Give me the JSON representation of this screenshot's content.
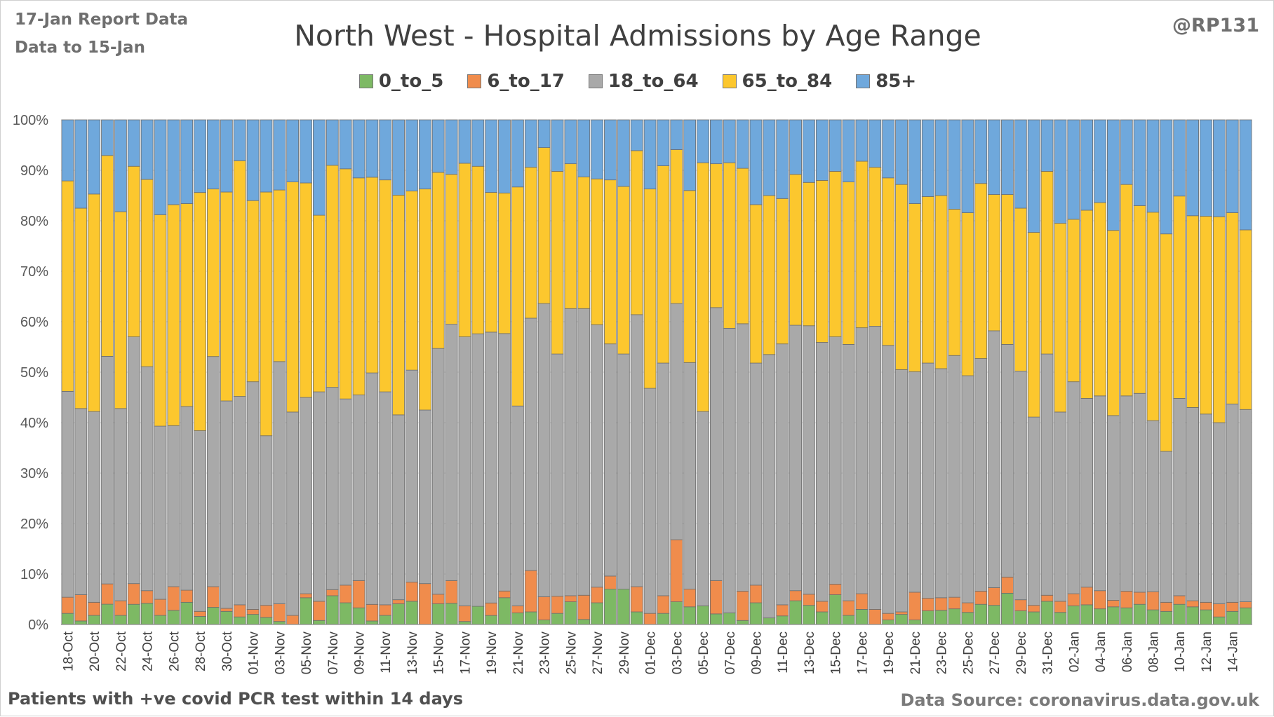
{
  "header": {
    "report_label": "17-Jan Report Data",
    "data_to_label": "Data to 15-Jan",
    "author": "@RP131"
  },
  "footer": {
    "note": "Patients with  +ve covid PCR test within 14 days",
    "source": "Data Source: coronavirus.data.gov.uk"
  },
  "colors": {
    "0_to_5": "#7db964",
    "6_to_17": "#f08c4c",
    "18_to_64": "#a9a9a9",
    "65_to_84": "#fcc72e",
    "85+": "#6fa8dc",
    "grid": "#d9d9d9",
    "bar_border": "#6e6e6e"
  },
  "chart_data": {
    "type": "bar",
    "stacked": true,
    "normalized": true,
    "title": "North West - Hospital Admissions by Age Range",
    "legend_position": "top",
    "grid": true,
    "ylim": [
      0,
      100
    ],
    "y_ticks": [
      "0%",
      "10%",
      "20%",
      "30%",
      "40%",
      "50%",
      "60%",
      "70%",
      "80%",
      "90%",
      "100%"
    ],
    "x_tick_labels": [
      "18-Oct",
      "20-Oct",
      "22-Oct",
      "24-Oct",
      "26-Oct",
      "28-Oct",
      "30-Oct",
      "01-Nov",
      "03-Nov",
      "05-Nov",
      "07-Nov",
      "09-Nov",
      "11-Nov",
      "13-Nov",
      "15-Nov",
      "17-Nov",
      "19-Nov",
      "21-Nov",
      "23-Nov",
      "25-Nov",
      "27-Nov",
      "29-Nov",
      "01-Dec",
      "03-Dec",
      "05-Dec",
      "07-Dec",
      "09-Dec",
      "11-Dec",
      "13-Dec",
      "15-Dec",
      "17-Dec",
      "19-Dec",
      "21-Dec",
      "23-Dec",
      "25-Dec",
      "27-Dec",
      "29-Dec",
      "31-Dec",
      "02-Jan",
      "04-Jan",
      "06-Jan",
      "08-Jan",
      "10-Jan",
      "12-Jan",
      "14-Jan"
    ],
    "categories": [
      "18-Oct",
      "19-Oct",
      "20-Oct",
      "21-Oct",
      "22-Oct",
      "23-Oct",
      "24-Oct",
      "25-Oct",
      "26-Oct",
      "27-Oct",
      "28-Oct",
      "29-Oct",
      "30-Oct",
      "31-Oct",
      "01-Nov",
      "02-Nov",
      "03-Nov",
      "04-Nov",
      "05-Nov",
      "06-Nov",
      "07-Nov",
      "08-Nov",
      "09-Nov",
      "10-Nov",
      "11-Nov",
      "12-Nov",
      "13-Nov",
      "14-Nov",
      "15-Nov",
      "16-Nov",
      "17-Nov",
      "18-Nov",
      "19-Nov",
      "20-Nov",
      "21-Nov",
      "22-Nov",
      "23-Nov",
      "24-Nov",
      "25-Nov",
      "26-Nov",
      "27-Nov",
      "28-Nov",
      "29-Nov",
      "30-Nov",
      "01-Dec",
      "02-Dec",
      "03-Dec",
      "04-Dec",
      "05-Dec",
      "06-Dec",
      "07-Dec",
      "08-Dec",
      "09-Dec",
      "10-Dec",
      "11-Dec",
      "12-Dec",
      "13-Dec",
      "14-Dec",
      "15-Dec",
      "16-Dec",
      "17-Dec",
      "18-Dec",
      "19-Dec",
      "20-Dec",
      "21-Dec",
      "22-Dec",
      "23-Dec",
      "24-Dec",
      "25-Dec",
      "26-Dec",
      "27-Dec",
      "28-Dec",
      "29-Dec",
      "30-Dec",
      "31-Dec",
      "01-Jan",
      "02-Jan",
      "03-Jan",
      "04-Jan",
      "05-Jan",
      "06-Jan",
      "07-Jan",
      "08-Jan",
      "09-Jan",
      "10-Jan",
      "11-Jan",
      "12-Jan",
      "13-Jan",
      "14-Jan",
      "15-Jan"
    ],
    "series": [
      {
        "name": "0_to_5",
        "values": [
          2.2,
          0.7,
          1.8,
          4.1,
          1.8,
          4.0,
          4.2,
          1.8,
          2.8,
          4.4,
          1.6,
          3.4,
          2.6,
          1.5,
          2.0,
          1.4,
          0.6,
          0.0,
          5.3,
          0.8,
          5.7,
          4.3,
          3.3,
          0.7,
          1.8,
          4.1,
          4.6,
          0.0,
          4.1,
          4.2,
          0.6,
          3.6,
          1.8,
          5.2,
          2.3,
          2.5,
          0.9,
          2.2,
          4.5,
          1.0,
          4.3,
          7.0,
          7.0,
          2.5,
          0.0,
          2.2,
          4.5,
          3.5,
          3.7,
          2.1,
          2.3,
          0.8,
          4.3,
          1.3,
          1.7,
          4.7,
          3.8,
          2.5,
          5.9,
          1.8,
          3.0,
          0.0,
          0.9,
          2.0,
          0.9,
          2.7,
          2.8,
          3.1,
          2.4,
          4.0,
          3.8,
          6.2,
          2.7,
          2.5,
          4.6,
          2.4,
          3.7,
          3.9,
          3.1,
          3.5,
          3.3,
          4.0,
          2.9,
          2.6,
          4.0,
          3.5,
          2.9,
          1.5,
          2.6,
          3.3
        ]
      },
      {
        "name": "6_to_17",
        "values": [
          3.2,
          5.2,
          2.6,
          4.1,
          2.9,
          4.1,
          2.5,
          3.2,
          4.7,
          2.4,
          1.0,
          4.1,
          0.6,
          2.4,
          1.0,
          2.4,
          3.5,
          1.8,
          0.8,
          3.8,
          1.2,
          3.5,
          5.4,
          3.3,
          2.1,
          0.8,
          3.8,
          8.1,
          1.9,
          4.5,
          3.1,
          0.0,
          2.5,
          1.3,
          1.4,
          8.2,
          4.6,
          3.4,
          1.2,
          4.8,
          3.1,
          2.6,
          0.0,
          5.0,
          2.2,
          3.5,
          12.3,
          3.5,
          0.0,
          6.6,
          0.0,
          5.8,
          3.5,
          0.0,
          2.2,
          2.0,
          2.2,
          2.1,
          2.1,
          2.9,
          3.1,
          3.0,
          1.3,
          0.5,
          5.5,
          2.5,
          2.5,
          2.3,
          1.9,
          2.6,
          3.5,
          3.2,
          2.2,
          1.3,
          1.2,
          2.2,
          2.4,
          3.5,
          3.6,
          1.3,
          3.3,
          2.4,
          3.6,
          1.8,
          1.7,
          1.2,
          1.5,
          2.6,
          1.8,
          1.2
        ]
      },
      {
        "name": "18_to_64",
        "values": [
          40.8,
          36.9,
          37.8,
          46.0,
          38.1,
          48.9,
          44.4,
          34.3,
          31.9,
          36.4,
          35.8,
          45.6,
          41.1,
          41.3,
          45.1,
          33.6,
          48.0,
          40.3,
          38.9,
          41.5,
          40.1,
          36.9,
          36.8,
          46.0,
          42.2,
          36.6,
          42.0,
          34.4,
          48.7,
          50.8,
          53.3,
          54.0,
          54.1,
          50.0,
          39.6,
          50.0,
          58.1,
          48.0,
          56.9,
          56.8,
          52.0,
          46.0,
          46.6,
          53.9,
          44.6,
          46.1,
          46.8,
          44.9,
          38.5,
          54.1,
          56.4,
          53.0,
          44.0,
          52.2,
          51.7,
          52.6,
          53.2,
          51.3,
          49.0,
          50.8,
          52.7,
          56.1,
          53.1,
          48.0,
          43.7,
          46.6,
          45.4,
          47.9,
          45.0,
          46.1,
          50.9,
          46.1,
          45.3,
          37.3,
          47.8,
          37.5,
          42.0,
          37.4,
          38.6,
          36.6,
          38.7,
          39.4,
          33.9,
          29.9,
          39.1,
          38.3,
          37.3,
          35.9,
          39.3,
          38.1
        ]
      },
      {
        "name": "65_to_84",
        "values": [
          41.7,
          39.7,
          43.1,
          40.6,
          39.0,
          33.8,
          37.1,
          41.9,
          43.8,
          40.2,
          47.2,
          33.2,
          41.4,
          46.7,
          35.9,
          48.3,
          34.0,
          45.6,
          42.5,
          35.0,
          44.0,
          45.6,
          43.0,
          38.9,
          42.0,
          43.5,
          35.5,
          43.8,
          34.9,
          29.7,
          34.4,
          33.2,
          27.9,
          27.3,
          43.4,
          29.9,
          30.9,
          36.2,
          28.7,
          26.1,
          28.9,
          32.5,
          33.2,
          32.5,
          39.5,
          39.1,
          30.5,
          34.1,
          49.3,
          28.5,
          32.8,
          30.8,
          31.4,
          31.5,
          28.8,
          29.9,
          28.4,
          32.1,
          32.8,
          32.2,
          33.0,
          31.5,
          33.2,
          36.7,
          33.3,
          33.0,
          34.3,
          29.0,
          32.3,
          34.7,
          27.0,
          29.7,
          32.3,
          36.6,
          36.2,
          37.4,
          32.2,
          37.3,
          38.3,
          36.7,
          41.9,
          37.2,
          41.3,
          43.1,
          40.1,
          38.0,
          39.2,
          40.8,
          37.9,
          35.6
        ]
      },
      {
        "name": "85+",
        "values": [
          12.1,
          17.5,
          14.7,
          7.2,
          18.2,
          9.2,
          11.8,
          18.8,
          16.8,
          16.6,
          14.4,
          13.7,
          14.3,
          8.1,
          16.0,
          14.3,
          13.9,
          12.3,
          12.5,
          18.9,
          9.0,
          9.7,
          11.5,
          11.4,
          11.9,
          14.9,
          14.1,
          13.7,
          10.4,
          10.8,
          8.6,
          9.2,
          14.5,
          14.2,
          13.3,
          9.4,
          5.5,
          10.2,
          8.7,
          11.3,
          11.7,
          11.9,
          13.2,
          6.1,
          13.7,
          9.1,
          5.9,
          14.0,
          8.5,
          8.7,
          8.5,
          9.6,
          16.8,
          15.0,
          15.6,
          10.8,
          12.4,
          12.0,
          10.2,
          12.3,
          8.2,
          9.4,
          11.5,
          12.8,
          16.6,
          15.2,
          15.0,
          17.7,
          18.4,
          12.6,
          14.8,
          14.8,
          17.5,
          22.3,
          10.2,
          20.5,
          19.7,
          17.9,
          16.4,
          21.9,
          12.8,
          17.0,
          18.3,
          22.6,
          15.1,
          19.0,
          19.1,
          19.2,
          18.4,
          21.8
        ]
      }
    ]
  }
}
